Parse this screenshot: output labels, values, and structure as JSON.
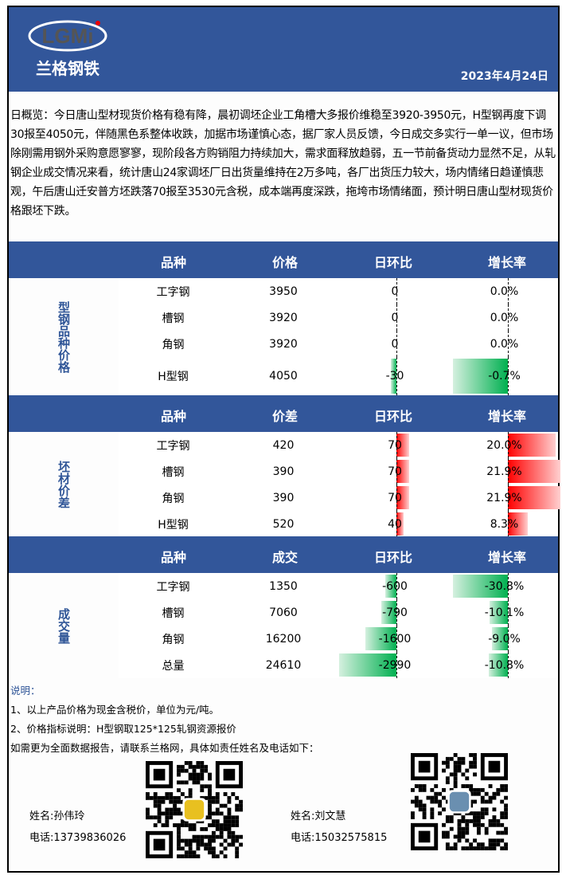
{
  "header": {
    "logo_text": "LGMi",
    "logo_cn": "兰格钢铁",
    "date": "2023年4月24日"
  },
  "summary": "日概览：今日唐山型材现货价格有稳有降，晨初调坯企业工角槽大多报价维稳至3920-3950元，H型钢再度下调30报至4050元，伴随黑色系整体收跌，加据市场谨慎心态，据厂家人员反馈，今日成交多实行一单一议，但市场除刚需用钢外采购意愿寥寥，现阶段各方购销阻力持续加大，需求面释放趋弱，五一节前备货动力显然不足，从轧钢企业成交情况来看，统计唐山24家调坯厂日出货量维持在2万多吨，各厂出货压力较大，场内情绪日趋谨慎悲观，午后唐山迁安普方坯跌落70报至3530元含税，成本端再度深跌，拖垮市场情绪面，预计明日唐山型材现货价格跟坯下跌。",
  "sections": [
    {
      "side": "型钢品种价格",
      "headers": [
        "品种",
        "价格",
        "日环比",
        "增长率"
      ],
      "rows": [
        {
          "name": "工字钢",
          "value": "3950",
          "change": 0,
          "change_label": "0",
          "rate": 0.0,
          "rate_label": "0.0%"
        },
        {
          "name": "槽钢",
          "value": "3920",
          "change": 0,
          "change_label": "0",
          "rate": 0.0,
          "rate_label": "0.0%"
        },
        {
          "name": "角钢",
          "value": "3920",
          "change": 0,
          "change_label": "0",
          "rate": 0.0,
          "rate_label": "0.0%"
        },
        {
          "name": "H型钢",
          "value": "4050",
          "change": -30,
          "change_label": "-30",
          "rate": -0.7,
          "rate_label": "-0.7%"
        }
      ]
    },
    {
      "side": "坯材价差",
      "headers": [
        "品种",
        "价差",
        "日环比",
        "增长率"
      ],
      "rows": [
        {
          "name": "工字钢",
          "value": "420",
          "change": 70,
          "change_label": "70",
          "rate": 20.0,
          "rate_label": "20.0%"
        },
        {
          "name": "槽钢",
          "value": "390",
          "change": 70,
          "change_label": "70",
          "rate": 21.9,
          "rate_label": "21.9%"
        },
        {
          "name": "角钢",
          "value": "390",
          "change": 70,
          "change_label": "70",
          "rate": 21.9,
          "rate_label": "21.9%"
        },
        {
          "name": "H型钢",
          "value": "520",
          "change": 40,
          "change_label": "40",
          "rate": 8.3,
          "rate_label": "8.3%"
        }
      ]
    },
    {
      "side": "成交量",
      "headers": [
        "品种",
        "成交",
        "日环比",
        "增长率"
      ],
      "rows": [
        {
          "name": "工字钢",
          "value": "1350",
          "change": -600,
          "change_label": "-600",
          "rate": -30.8,
          "rate_label": "-30.8%"
        },
        {
          "name": "槽钢",
          "value": "7060",
          "change": -790,
          "change_label": "-790",
          "rate": -10.1,
          "rate_label": "-10.1%"
        },
        {
          "name": "角钢",
          "value": "16200",
          "change": -1600,
          "change_label": "-1600",
          "rate": -9.0,
          "rate_label": "-9.0%"
        },
        {
          "name": "总量",
          "value": "24610",
          "change": -2990,
          "change_label": "-2990",
          "rate": -10.8,
          "rate_label": "-10.8%"
        }
      ]
    }
  ],
  "notes": {
    "title": "说明：",
    "line1": "1、以上产品价格为现金含税价，单位为元/吨。",
    "line2": "2、价格指标说明：H型钢取125*125轧钢资源报价",
    "line3": "如需更为全面数据报告，请联系兰格网，具体如责任姓名及电话如下："
  },
  "contacts": [
    {
      "name": "姓名:孙伟玲",
      "phone": "电话:13739836026"
    },
    {
      "name": "姓名:刘文慧",
      "phone": "电话:15032575815"
    }
  ],
  "colors": {
    "brand": "#32569a",
    "neg": "#00b050",
    "pos": "#ff0000"
  }
}
